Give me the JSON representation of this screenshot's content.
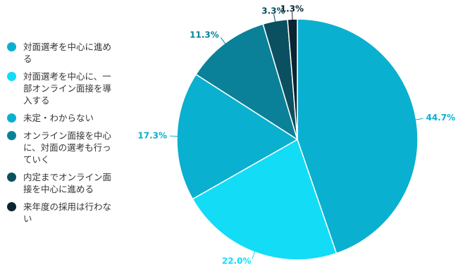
{
  "chart_data": {
    "type": "pie",
    "categories": [
      "対面選考を中心に進める",
      "対面選考を中心に、一部オンライン面接を導入する",
      "未定・わからない",
      "オンライン面接を中心に、対面の選考も行っていく",
      "内定までオンライン面接を中心に進める",
      "来年度の採用は行わない"
    ],
    "values": [
      44.7,
      22.0,
      17.3,
      11.3,
      3.3,
      1.3
    ],
    "value_labels": [
      "44.7%",
      "22.0%",
      "17.3%",
      "11.3%",
      "3.3%",
      "1.3%"
    ],
    "colors": [
      "#0ab0cf",
      "#12dcf6",
      "#0ab0cf",
      "#0a8199",
      "#0a5060",
      "#0a2531"
    ],
    "legend": "left"
  }
}
